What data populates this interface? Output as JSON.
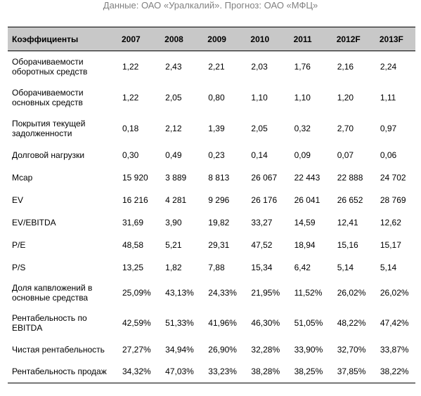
{
  "caption": "Данные: ОАО «Уралкалий». Прогноз: ОАО «МФЦ»",
  "header": [
    "Коэффициенты",
    "2007",
    "2008",
    "2009",
    "2010",
    "2011",
    "2012F",
    "2013F"
  ],
  "rows": [
    {
      "label": "Оборачиваемости оборотных средств",
      "values": [
        "1,22",
        "2,43",
        "2,21",
        "2,03",
        "1,76",
        "2,16",
        "2,24"
      ]
    },
    {
      "label": "Оборачиваемости основных средств",
      "values": [
        "1,22",
        "2,05",
        "0,80",
        "1,10",
        "1,10",
        "1,20",
        "1,11"
      ]
    },
    {
      "label": "Покрытия текущей задолженности",
      "values": [
        "0,18",
        "2,12",
        "1,39",
        "2,05",
        "0,32",
        "2,70",
        "0,97"
      ]
    },
    {
      "label": "Долговой нагрузки",
      "values": [
        "0,30",
        "0,49",
        "0,23",
        "0,14",
        "0,09",
        "0,07",
        "0,06"
      ]
    },
    {
      "label": "Mcap",
      "values": [
        "15 920",
        "3 889",
        "8 813",
        "26 067",
        "22 443",
        "22 888",
        "24 702"
      ]
    },
    {
      "label": "EV",
      "values": [
        "16 216",
        "4 281",
        "9 296",
        "26 176",
        "26 041",
        "26 652",
        "28 769"
      ]
    },
    {
      "label": "EV/EBITDA",
      "values": [
        "31,69",
        "3,90",
        "19,82",
        "33,27",
        "14,59",
        "12,41",
        "12,62"
      ]
    },
    {
      "label": "P/E",
      "values": [
        "48,58",
        "5,21",
        "29,31",
        "47,52",
        "18,94",
        "15,16",
        "15,17"
      ]
    },
    {
      "label": "P/S",
      "values": [
        "13,25",
        "1,82",
        "7,88",
        "15,34",
        "6,42",
        "5,14",
        "5,14"
      ]
    },
    {
      "label": "Доля капвложений в основные средства",
      "values": [
        "25,09%",
        "43,13%",
        "24,33%",
        "21,95%",
        "11,52%",
        "26,02%",
        "26,02%"
      ]
    },
    {
      "label": "Рентабельность по EBITDA",
      "values": [
        "42,59%",
        "51,33%",
        "41,96%",
        "46,30%",
        "51,05%",
        "48,22%",
        "47,42%"
      ]
    },
    {
      "label": "Чистая рентабельность",
      "values": [
        "27,27%",
        "34,94%",
        "26,90%",
        "32,28%",
        "33,90%",
        "32,70%",
        "33,87%"
      ]
    },
    {
      "label": "Рентабельность продаж",
      "values": [
        "34,32%",
        "47,03%",
        "33,23%",
        "38,28%",
        "38,25%",
        "37,85%",
        "38,22%"
      ]
    }
  ]
}
